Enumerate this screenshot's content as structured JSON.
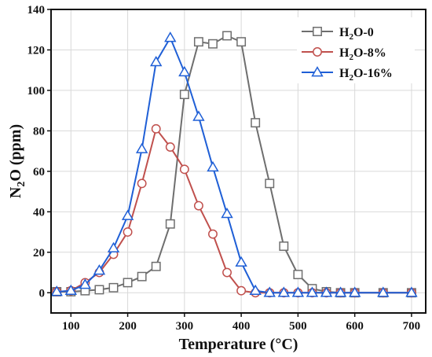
{
  "chart_data": {
    "type": "line",
    "xlabel": "Temperature (°C)",
    "ylabel_parts": {
      "base": "N",
      "sub": "2",
      "rest": "O (ppm)"
    },
    "xlim": [
      65,
      725
    ],
    "ylim": [
      -10,
      140
    ],
    "xticks": [
      100,
      200,
      300,
      400,
      500,
      600,
      700
    ],
    "yticks": [
      0,
      20,
      40,
      60,
      80,
      100,
      120,
      140
    ],
    "grid": true,
    "legend_position": "top-right",
    "series": [
      {
        "name_parts": {
          "base": "H",
          "sub": "2",
          "rest": "O-0"
        },
        "color": "#6e6e6e",
        "marker": "square",
        "x": [
          75,
          100,
          125,
          150,
          175,
          200,
          225,
          250,
          275,
          300,
          325,
          350,
          375,
          400,
          425,
          450,
          475,
          500,
          525,
          550,
          575,
          600,
          650,
          700
        ],
        "y": [
          0.5,
          0.5,
          1,
          1.5,
          2.5,
          5,
          8,
          13,
          34,
          98,
          124,
          123,
          127,
          124,
          84,
          54,
          23,
          9,
          2,
          0.5,
          0,
          0,
          0,
          0
        ]
      },
      {
        "name_parts": {
          "base": "H",
          "sub": "2",
          "rest": "O-8%"
        },
        "color": "#c0504d",
        "marker": "circle",
        "x": [
          75,
          100,
          125,
          150,
          175,
          200,
          225,
          250,
          275,
          300,
          325,
          350,
          375,
          400,
          425,
          450,
          475,
          500,
          525,
          550,
          575,
          600,
          650,
          700
        ],
        "y": [
          0.5,
          1,
          5,
          10,
          19,
          30,
          54,
          81,
          72,
          61,
          43,
          29,
          10,
          1,
          0,
          0,
          0,
          0,
          0,
          0,
          0,
          0,
          0,
          0
        ]
      },
      {
        "name_parts": {
          "base": "H",
          "sub": "2",
          "rest": "O-16%"
        },
        "color": "#1f5fd6",
        "marker": "triangle",
        "x": [
          75,
          100,
          125,
          150,
          175,
          200,
          225,
          250,
          275,
          300,
          325,
          350,
          375,
          400,
          425,
          450,
          475,
          500,
          525,
          550,
          575,
          600,
          650,
          700
        ],
        "y": [
          0.5,
          1,
          4,
          11,
          22,
          38,
          71,
          114,
          126,
          109,
          87,
          62,
          39,
          15,
          1,
          0,
          0,
          0,
          0,
          0,
          0,
          0,
          0,
          0
        ]
      }
    ]
  }
}
